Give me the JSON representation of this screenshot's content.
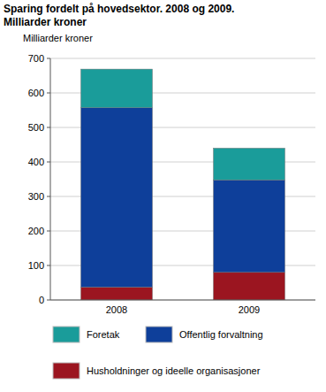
{
  "chart_data": {
    "type": "bar",
    "title": "Sparing fordelt på hovedsektor. 2008 og 2009.",
    "subtitle": "Milliarder kroner",
    "y_label": "Milliarder kroner",
    "categories": [
      "2008",
      "2009"
    ],
    "series": [
      {
        "name": "Husholdninger og ideelle organisasjoner",
        "color": "#9b1520",
        "values": [
          37,
          80
        ]
      },
      {
        "name": "Offentlig forvaltning",
        "color": "#0e3f9a",
        "values": [
          520,
          268
        ]
      },
      {
        "name": "Foretak",
        "color": "#1a9c9a",
        "values": [
          112,
          92
        ]
      }
    ],
    "ylim": [
      0,
      700
    ],
    "yticks": [
      0,
      100,
      200,
      300,
      400,
      500,
      600,
      700
    ],
    "stacked": true,
    "grid": true,
    "legend": "bottom"
  }
}
